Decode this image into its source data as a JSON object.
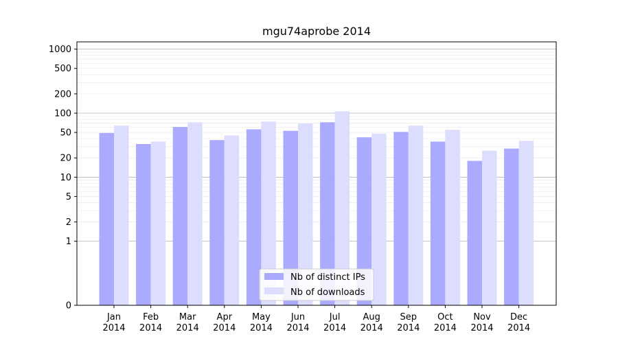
{
  "chart_data": {
    "type": "bar",
    "title": "mgu74aprobe 2014",
    "xlabel": "",
    "ylabel": "",
    "categories": [
      "Jan\n2014",
      "Feb\n2014",
      "Mar\n2014",
      "Apr\n2014",
      "May\n2014",
      "Jun\n2014",
      "Jul\n2014",
      "Aug\n2014",
      "Sep\n2014",
      "Oct\n2014",
      "Nov\n2014",
      "Dec\n2014"
    ],
    "series": [
      {
        "name": "Nb of distinct IPs",
        "color": "#aaaaff",
        "values": [
          49,
          33,
          61,
          38,
          56,
          53,
          72,
          42,
          51,
          36,
          18,
          28
        ]
      },
      {
        "name": "Nb of downloads",
        "color": "#ddddff",
        "values": [
          64,
          36,
          72,
          45,
          74,
          69,
          107,
          48,
          64,
          55,
          26,
          37
        ]
      }
    ],
    "y_scale": "symlog",
    "ylim": [
      0,
      1300
    ],
    "y_ticks": [
      {
        "value": 0,
        "label": "0"
      },
      {
        "value": 1,
        "label": "1"
      },
      {
        "value": 2,
        "label": "2"
      },
      {
        "value": 5,
        "label": "5"
      },
      {
        "value": 10,
        "label": "10"
      },
      {
        "value": 20,
        "label": "20"
      },
      {
        "value": 50,
        "label": "50"
      },
      {
        "value": 100,
        "label": "100"
      },
      {
        "value": 200,
        "label": "200"
      },
      {
        "value": 500,
        "label": "500"
      },
      {
        "value": 1000,
        "label": "1000"
      }
    ],
    "grid": true,
    "legend": "bottom-center"
  }
}
